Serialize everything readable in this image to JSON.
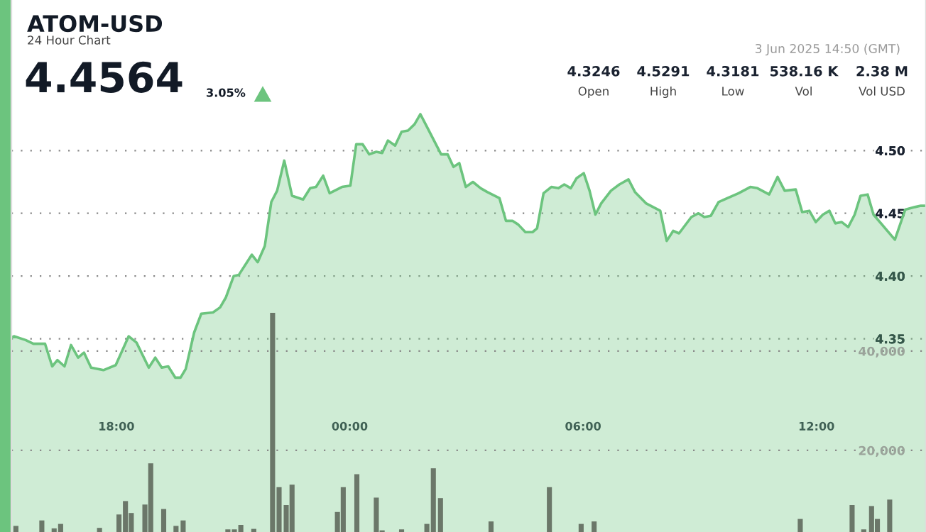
{
  "chart_data": {
    "type": "area",
    "title": "ATOM-USD",
    "subtitle": "24 Hour Chart",
    "annotations": [
      "4.4564",
      "3.05%",
      "4.3246",
      "Open",
      "4.5291",
      "High",
      "4.3181",
      "Low",
      "538.16 K",
      "Vol",
      "2.38 M",
      "Vol USD",
      "3 Jun 2025 14:50 (GMT)"
    ],
    "series": [
      {
        "color": "#6cc47e",
        "x": [
          "2025-06-02T15:18",
          "2025-06-02T15:22",
          "2025-06-02T15:40",
          "2025-06-02T15:52",
          "2025-06-02T16:10",
          "2025-06-02T16:21",
          "2025-06-02T16:29",
          "2025-06-02T16:40",
          "2025-06-02T16:50",
          "2025-06-02T17:01",
          "2025-06-02T17:10",
          "2025-06-02T17:21",
          "2025-06-02T17:40",
          "2025-06-02T17:59",
          "2025-06-02T18:19",
          "2025-06-02T18:31",
          "2025-06-02T18:50",
          "2025-06-02T19:00",
          "2025-06-02T19:10",
          "2025-06-02T19:20",
          "2025-06-02T19:31",
          "2025-06-02T19:39",
          "2025-06-02T19:47",
          "2025-06-02T20:00",
          "2025-06-02T20:11",
          "2025-06-02T20:29",
          "2025-06-02T20:40",
          "2025-06-02T20:49",
          "2025-06-02T21:01",
          "2025-06-02T21:09",
          "2025-06-02T21:29",
          "2025-06-02T21:38",
          "2025-06-02T21:49",
          "2025-06-02T21:59",
          "2025-06-02T22:08",
          "2025-06-02T22:19",
          "2025-06-02T22:31",
          "2025-06-02T22:48",
          "2025-06-02T22:59",
          "2025-06-02T23:08",
          "2025-06-02T23:19",
          "2025-06-02T23:29",
          "2025-06-02T23:48",
          "2025-06-03T00:01",
          "2025-06-03T00:10",
          "2025-06-03T00:20",
          "2025-06-03T00:30",
          "2025-06-03T00:41",
          "2025-06-03T00:50",
          "2025-06-03T00:59",
          "2025-06-03T01:10",
          "2025-06-03T01:20",
          "2025-06-03T01:30",
          "2025-06-03T01:40",
          "2025-06-03T01:49",
          "2025-06-03T02:01",
          "2025-06-03T02:21",
          "2025-06-03T02:31",
          "2025-06-03T02:40",
          "2025-06-03T02:49",
          "2025-06-03T02:59",
          "2025-06-03T03:10",
          "2025-06-03T03:22",
          "2025-06-03T03:32",
          "2025-06-03T03:51",
          "2025-06-03T04:01",
          "2025-06-03T04:11",
          "2025-06-03T04:20",
          "2025-06-03T04:31",
          "2025-06-03T04:42",
          "2025-06-03T04:49",
          "2025-06-03T04:59",
          "2025-06-03T05:11",
          "2025-06-03T05:22",
          "2025-06-03T05:31",
          "2025-06-03T05:41",
          "2025-06-03T05:50",
          "2025-06-03T06:01",
          "2025-06-03T06:10",
          "2025-06-03T06:19",
          "2025-06-03T06:28",
          "2025-06-03T06:43",
          "2025-06-03T06:56",
          "2025-06-03T07:10",
          "2025-06-03T07:20",
          "2025-06-03T07:37",
          "2025-06-03T07:59",
          "2025-06-03T08:09",
          "2025-06-03T08:19",
          "2025-06-03T08:28",
          "2025-06-03T08:47",
          "2025-06-03T08:58",
          "2025-06-03T09:07",
          "2025-06-03T09:17",
          "2025-06-03T09:29",
          "2025-06-03T10:00",
          "2025-06-03T10:18",
          "2025-06-03T10:29",
          "2025-06-03T10:47",
          "2025-06-03T11:00",
          "2025-06-03T11:11",
          "2025-06-03T11:28",
          "2025-06-03T11:38",
          "2025-06-03T11:49",
          "2025-06-03T11:59",
          "2025-06-03T12:10",
          "2025-06-03T12:20",
          "2025-06-03T12:29",
          "2025-06-03T12:39",
          "2025-06-03T12:49",
          "2025-06-03T12:59",
          "2025-06-03T13:08",
          "2025-06-03T13:19",
          "2025-06-03T13:28",
          "2025-06-03T14:01",
          "2025-06-03T14:17",
          "2025-06-03T14:32",
          "2025-06-03T14:41",
          "2025-06-03T14:49"
        ],
        "values": [
          4.351,
          4.352,
          4.349,
          4.346,
          4.346,
          4.328,
          4.333,
          4.328,
          4.345,
          4.335,
          4.339,
          4.327,
          4.325,
          4.329,
          4.352,
          4.347,
          4.327,
          4.335,
          4.327,
          4.328,
          4.319,
          4.319,
          4.326,
          4.355,
          4.37,
          4.371,
          4.375,
          4.383,
          4.4,
          4.401,
          4.417,
          4.411,
          4.424,
          4.459,
          4.468,
          4.492,
          4.464,
          4.461,
          4.47,
          4.471,
          4.48,
          4.466,
          4.471,
          4.472,
          4.505,
          4.505,
          4.497,
          4.499,
          4.498,
          4.508,
          4.504,
          4.515,
          4.516,
          4.521,
          4.529,
          4.517,
          4.497,
          4.497,
          4.487,
          4.49,
          4.471,
          4.475,
          4.47,
          4.467,
          4.462,
          4.444,
          4.444,
          4.441,
          4.435,
          4.435,
          4.438,
          4.466,
          4.471,
          4.47,
          4.473,
          4.47,
          4.478,
          4.482,
          4.468,
          4.449,
          4.458,
          4.468,
          4.473,
          4.477,
          4.467,
          4.458,
          4.452,
          4.428,
          4.436,
          4.434,
          4.447,
          4.45,
          4.447,
          4.448,
          4.459,
          4.466,
          4.471,
          4.47,
          4.465,
          4.479,
          4.468,
          4.469,
          4.451,
          4.452,
          4.443,
          4.449,
          4.452,
          4.442,
          4.443,
          4.439,
          4.449,
          4.464,
          4.465,
          4.449,
          4.429,
          4.453,
          4.455,
          4.456,
          4.456
        ]
      },
      {
        "type": "bar",
        "axis": "y2",
        "color": "#6b7769",
        "x": [
          "2025-06-02T15:25",
          "2025-06-02T16:05",
          "2025-06-02T16:24",
          "2025-06-02T16:34",
          "2025-06-02T17:34",
          "2025-06-02T18:04",
          "2025-06-02T18:14",
          "2025-06-02T18:23",
          "2025-06-02T18:44",
          "2025-06-02T18:53",
          "2025-06-02T19:13",
          "2025-06-02T19:32",
          "2025-06-02T19:43",
          "2025-06-02T20:52",
          "2025-06-02T21:02",
          "2025-06-02T21:12",
          "2025-06-02T21:32",
          "2025-06-02T22:01",
          "2025-06-02T22:11",
          "2025-06-02T22:22",
          "2025-06-02T22:31",
          "2025-06-02T23:41",
          "2025-06-02T23:50",
          "2025-06-03T00:11",
          "2025-06-03T00:41",
          "2025-06-03T00:50",
          "2025-06-03T01:20",
          "2025-06-03T01:59",
          "2025-06-03T02:09",
          "2025-06-03T02:20",
          "2025-06-03T03:38",
          "2025-06-03T05:08",
          "2025-06-03T05:57",
          "2025-06-03T06:17",
          "2025-06-03T11:35",
          "2025-06-03T12:55",
          "2025-06-03T13:13",
          "2025-06-03T13:25",
          "2025-06-03T13:34",
          "2025-06-03T13:53"
        ],
        "values": [
          4800,
          5900,
          4300,
          5200,
          4400,
          7100,
          9800,
          7400,
          9100,
          17400,
          8200,
          4800,
          5900,
          4100,
          4100,
          5000,
          4200,
          47700,
          12600,
          9000,
          13100,
          7600,
          12600,
          15200,
          10500,
          3900,
          4100,
          5200,
          16400,
          10400,
          5700,
          12600,
          5200,
          5700,
          6200,
          9000,
          4100,
          8800,
          6200,
          10100
        ]
      }
    ],
    "xlim": [
      "2025-06-02T15:18",
      "2025-06-03T14:49"
    ],
    "xticks": [
      {
        "value": "2025-06-02T18:00",
        "label": "18:00"
      },
      {
        "value": "2025-06-03T00:00",
        "label": "00:00"
      },
      {
        "value": "2025-06-03T06:00",
        "label": "06:00"
      },
      {
        "value": "2025-06-03T12:00",
        "label": "12:00"
      }
    ],
    "ylim": [
      4.196,
      4.62
    ],
    "yticks": [
      {
        "value": 4.35,
        "label": "4.35"
      },
      {
        "value": 4.4,
        "label": "4.40"
      },
      {
        "value": 4.45,
        "label": "4.45"
      },
      {
        "value": 4.5,
        "label": "4.50"
      }
    ],
    "y2lim": [
      3570,
      110700
    ],
    "y2ticks": [
      {
        "value": 20000,
        "label": "20,000"
      },
      {
        "value": 40000,
        "label": "40,000"
      }
    ],
    "grid": "y",
    "legend": false,
    "marker": "none",
    "line_style": "solid"
  }
}
